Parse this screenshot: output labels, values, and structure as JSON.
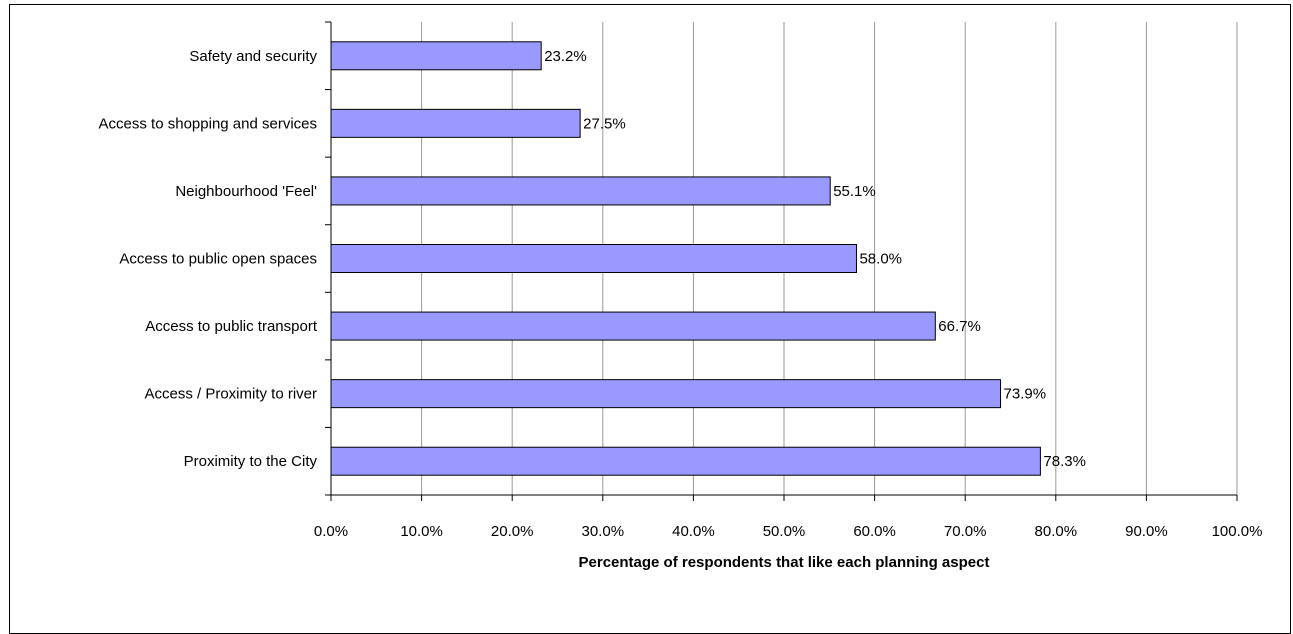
{
  "chart_data": {
    "type": "bar",
    "orientation": "horizontal",
    "categories": [
      "Safety and security",
      "Access to shopping and services",
      "Neighbourhood 'Feel'",
      "Access to public open spaces",
      "Access to public transport",
      "Access / Proximity to river",
      "Proximity to the City"
    ],
    "values": [
      23.2,
      27.5,
      55.1,
      58.0,
      66.7,
      73.9,
      78.3
    ],
    "data_labels": [
      "23.2%",
      "27.5%",
      "55.1%",
      "58.0%",
      "66.7%",
      "73.9%",
      "78.3%"
    ],
    "xlim": [
      0,
      100
    ],
    "xticks": [
      0,
      10,
      20,
      30,
      40,
      50,
      60,
      70,
      80,
      90,
      100
    ],
    "xtick_labels": [
      "0.0%",
      "10.0%",
      "20.0%",
      "30.0%",
      "40.0%",
      "50.0%",
      "60.0%",
      "70.0%",
      "80.0%",
      "90.0%",
      "100.0%"
    ],
    "xlabel": "Percentage of respondents that like each planning aspect",
    "ylabel": "",
    "title": "",
    "grid": "vertical",
    "legend": "none",
    "colors": {
      "bar_fill": "#9999ff",
      "bar_stroke": "#000000",
      "grid": "#999999"
    }
  }
}
